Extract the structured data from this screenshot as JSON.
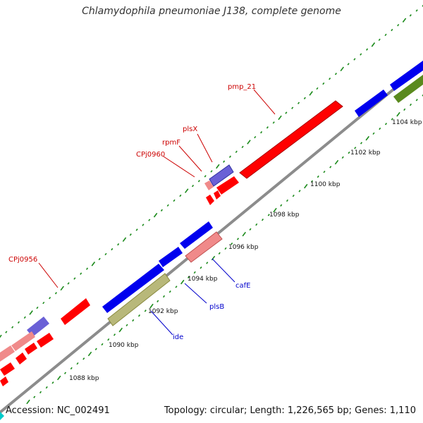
{
  "title": "Chlamydophila pneumoniae J138, complete genome",
  "footer": {
    "accession": "Accession: NC_002491",
    "summary": "Topology: circular; Length: 1,226,565 bp; Genes: 1,110"
  },
  "colors": {
    "backbone": "#8c8c8c",
    "tick_dots": "#1a8a1a",
    "red": "#ff0000",
    "pink": "#f08a8a",
    "blue": "#0000ee",
    "slate": "#7a70d8",
    "olive": "#b8b87a",
    "green": "#5a8a1e",
    "cyan": "#00cccc",
    "gene_label": "#cc0000",
    "blue_label": "#0000cc"
  },
  "scale_labels": [
    {
      "text": "1088 kbp",
      "kbp": 1088
    },
    {
      "text": "1090 kbp",
      "kbp": 1090
    },
    {
      "text": "1092 kbp",
      "kbp": 1092
    },
    {
      "text": "1094 kbp",
      "kbp": 1094
    },
    {
      "text": "1096 kbp",
      "kbp": 1096
    },
    {
      "text": "1098 kbp",
      "kbp": 1098
    },
    {
      "text": "1100 kbp",
      "kbp": 1100
    },
    {
      "text": "1102 kbp",
      "kbp": 1102
    },
    {
      "text": "1104 kbp",
      "kbp": 1104
    }
  ],
  "gene_labels": [
    {
      "text": "pmp_21",
      "color": "red"
    },
    {
      "text": "plsX",
      "color": "red"
    },
    {
      "text": "rpmF",
      "color": "red"
    },
    {
      "text": "CPj0960",
      "color": "red"
    },
    {
      "text": "CPj0956",
      "color": "red"
    },
    {
      "text": "cafE",
      "color": "blue"
    },
    {
      "text": "plsB",
      "color": "blue"
    },
    {
      "text": "ide",
      "color": "blue"
    }
  ]
}
